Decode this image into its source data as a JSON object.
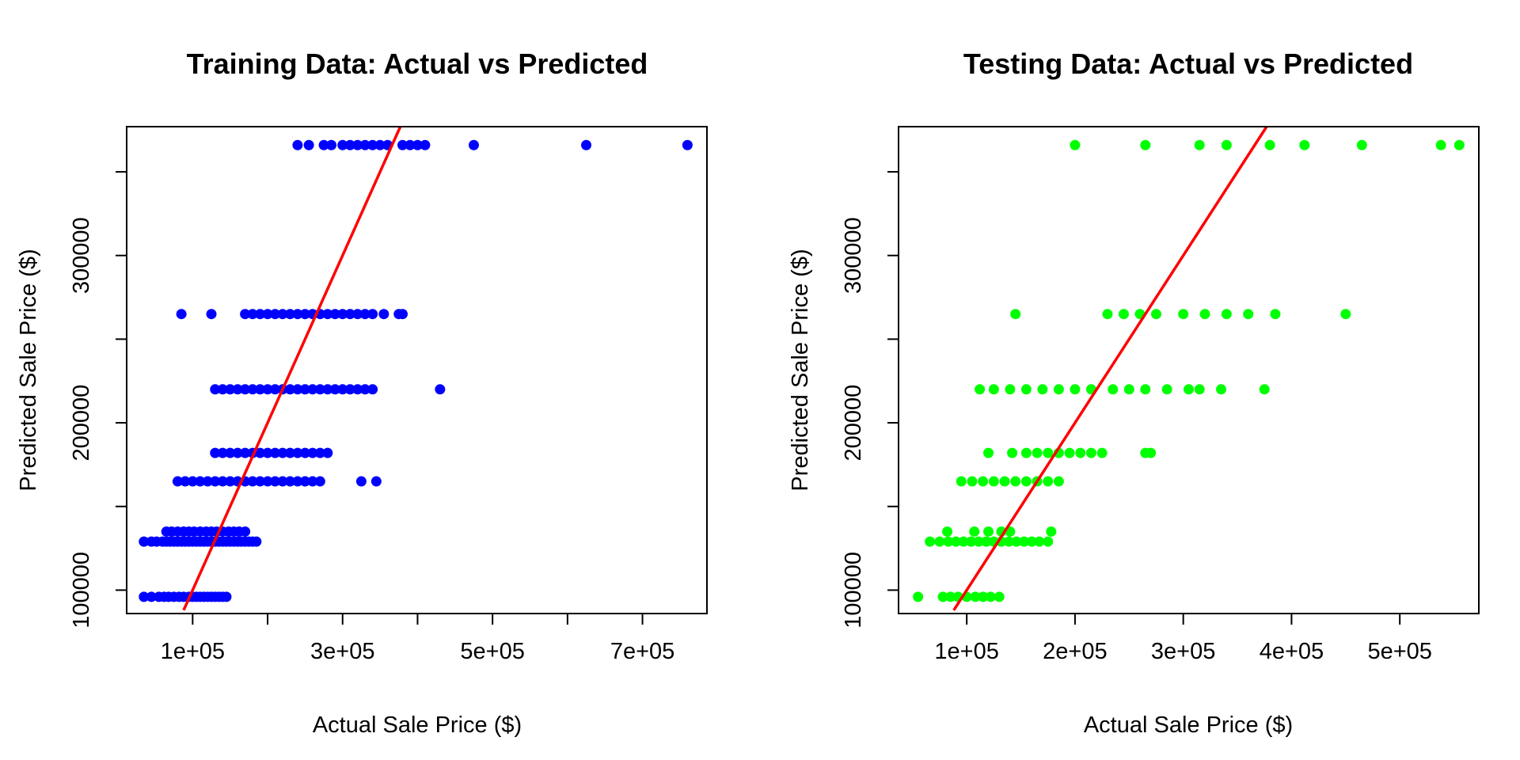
{
  "chart_data": [
    {
      "type": "scatter",
      "title": "Training Data: Actual vs Predicted",
      "xlabel": "Actual Sale Price ($)",
      "ylabel": "Predicted Sale Price ($)",
      "xlim": [
        12000,
        786000
      ],
      "ylim": [
        86000,
        377000
      ],
      "xticks": [
        100000,
        200000,
        300000,
        400000,
        500000,
        600000,
        700000
      ],
      "xtick_labels": [
        "1e+05",
        "",
        "3e+05",
        "",
        "5e+05",
        "",
        "7e+05"
      ],
      "yticks": [
        100000,
        150000,
        200000,
        250000,
        300000,
        350000
      ],
      "ytick_labels": [
        "100000",
        "",
        "200000",
        "",
        "300000",
        ""
      ],
      "point_color": "#0000ff",
      "line_color": "#ff0000",
      "reference_line": {
        "type": "y=x",
        "x": [
          88000,
          377000
        ],
        "y": [
          88000,
          377000
        ]
      },
      "series": [
        {
          "values_x": [
            35000,
            45000,
            55000,
            62000,
            68000,
            75000,
            82000,
            88000,
            95000,
            100000,
            105000,
            110000,
            115000,
            120000,
            125000,
            130000,
            135000,
            140000,
            145000,
            35000,
            45000,
            52000,
            60000,
            65000,
            70000,
            75000,
            80000,
            85000,
            90000,
            95000,
            100000,
            105000,
            110000,
            115000,
            120000,
            125000,
            130000,
            135000,
            140000,
            145000,
            150000,
            155000,
            160000,
            165000,
            170000,
            175000,
            180000,
            185000,
            65000,
            72000,
            80000,
            88000,
            95000,
            102000,
            110000,
            118000,
            125000,
            132000,
            140000,
            148000,
            155000,
            162000,
            170000,
            80000,
            90000,
            100000,
            110000,
            120000,
            130000,
            140000,
            150000,
            160000,
            170000,
            180000,
            190000,
            200000,
            210000,
            220000,
            230000,
            240000,
            250000,
            260000,
            270000,
            325000,
            345000,
            130000,
            140000,
            150000,
            160000,
            170000,
            180000,
            190000,
            200000,
            210000,
            220000,
            230000,
            240000,
            250000,
            260000,
            270000,
            280000,
            130000,
            140000,
            150000,
            160000,
            170000,
            180000,
            190000,
            200000,
            210000,
            220000,
            230000,
            240000,
            250000,
            260000,
            270000,
            280000,
            290000,
            300000,
            310000,
            320000,
            330000,
            340000,
            430000,
            85000,
            125000,
            170000,
            180000,
            190000,
            200000,
            210000,
            220000,
            230000,
            240000,
            250000,
            260000,
            270000,
            280000,
            290000,
            300000,
            310000,
            320000,
            330000,
            340000,
            355000,
            375000,
            380000,
            240000,
            255000,
            275000,
            285000,
            300000,
            310000,
            320000,
            330000,
            340000,
            350000,
            360000,
            380000,
            390000,
            400000,
            410000,
            475000,
            625000,
            760000
          ],
          "values_y": [
            96000,
            96000,
            96000,
            96000,
            96000,
            96000,
            96000,
            96000,
            96000,
            96000,
            96000,
            96000,
            96000,
            96000,
            96000,
            96000,
            96000,
            96000,
            96000,
            129000,
            129000,
            129000,
            129000,
            129000,
            129000,
            129000,
            129000,
            129000,
            129000,
            129000,
            129000,
            129000,
            129000,
            129000,
            129000,
            129000,
            129000,
            129000,
            129000,
            129000,
            129000,
            129000,
            129000,
            129000,
            129000,
            129000,
            129000,
            129000,
            135000,
            135000,
            135000,
            135000,
            135000,
            135000,
            135000,
            135000,
            135000,
            135000,
            135000,
            135000,
            135000,
            135000,
            135000,
            165000,
            165000,
            165000,
            165000,
            165000,
            165000,
            165000,
            165000,
            165000,
            165000,
            165000,
            165000,
            165000,
            165000,
            165000,
            165000,
            165000,
            165000,
            165000,
            165000,
            165000,
            165000,
            182000,
            182000,
            182000,
            182000,
            182000,
            182000,
            182000,
            182000,
            182000,
            182000,
            182000,
            182000,
            182000,
            182000,
            182000,
            182000,
            220000,
            220000,
            220000,
            220000,
            220000,
            220000,
            220000,
            220000,
            220000,
            220000,
            220000,
            220000,
            220000,
            220000,
            220000,
            220000,
            220000,
            220000,
            220000,
            220000,
            220000,
            220000,
            220000,
            265000,
            265000,
            265000,
            265000,
            265000,
            265000,
            265000,
            265000,
            265000,
            265000,
            265000,
            265000,
            265000,
            265000,
            265000,
            265000,
            265000,
            265000,
            265000,
            265000,
            265000,
            265000,
            265000,
            366000,
            366000,
            366000,
            366000,
            366000,
            366000,
            366000,
            366000,
            366000,
            366000,
            366000,
            366000,
            366000,
            366000,
            366000,
            366000,
            366000,
            366000
          ]
        }
      ]
    },
    {
      "type": "scatter",
      "title": "Testing Data: Actual vs Predicted",
      "xlabel": "Actual Sale Price ($)",
      "ylabel": "Predicted Sale Price ($)",
      "xlim": [
        37000,
        573000
      ],
      "ylim": [
        86000,
        377000
      ],
      "xticks": [
        100000,
        200000,
        300000,
        400000,
        500000
      ],
      "xtick_labels": [
        "1e+05",
        "2e+05",
        "3e+05",
        "4e+05",
        "5e+05"
      ],
      "yticks": [
        100000,
        150000,
        200000,
        250000,
        300000,
        350000
      ],
      "ytick_labels": [
        "100000",
        "",
        "200000",
        "",
        "300000",
        ""
      ],
      "point_color": "#00ff00",
      "line_color": "#ff0000",
      "reference_line": {
        "type": "y=x",
        "x": [
          88000,
          377000
        ],
        "y": [
          88000,
          377000
        ]
      },
      "series": [
        {
          "values_x": [
            55000,
            78000,
            85000,
            92000,
            100000,
            108000,
            115000,
            122000,
            130000,
            66000,
            75000,
            83000,
            90000,
            97000,
            104000,
            111000,
            118000,
            125000,
            132000,
            139000,
            146000,
            153000,
            160000,
            167000,
            175000,
            82000,
            107000,
            120000,
            132000,
            140000,
            178000,
            95000,
            105000,
            115000,
            125000,
            135000,
            145000,
            155000,
            165000,
            175000,
            185000,
            120000,
            142000,
            155000,
            165000,
            175000,
            185000,
            195000,
            205000,
            215000,
            225000,
            265000,
            270000,
            112000,
            125000,
            140000,
            155000,
            170000,
            185000,
            200000,
            215000,
            235000,
            250000,
            265000,
            285000,
            305000,
            315000,
            335000,
            375000,
            145000,
            230000,
            245000,
            260000,
            275000,
            300000,
            320000,
            340000,
            360000,
            385000,
            450000,
            200000,
            265000,
            315000,
            340000,
            380000,
            412000,
            465000,
            538000,
            555000
          ],
          "values_y": [
            96000,
            96000,
            96000,
            96000,
            96000,
            96000,
            96000,
            96000,
            96000,
            129000,
            129000,
            129000,
            129000,
            129000,
            129000,
            129000,
            129000,
            129000,
            129000,
            129000,
            129000,
            129000,
            129000,
            129000,
            129000,
            135000,
            135000,
            135000,
            135000,
            135000,
            135000,
            165000,
            165000,
            165000,
            165000,
            165000,
            165000,
            165000,
            165000,
            165000,
            165000,
            182000,
            182000,
            182000,
            182000,
            182000,
            182000,
            182000,
            182000,
            182000,
            182000,
            182000,
            182000,
            220000,
            220000,
            220000,
            220000,
            220000,
            220000,
            220000,
            220000,
            220000,
            220000,
            220000,
            220000,
            220000,
            220000,
            220000,
            220000,
            265000,
            265000,
            265000,
            265000,
            265000,
            265000,
            265000,
            265000,
            265000,
            265000,
            265000,
            366000,
            366000,
            366000,
            366000,
            366000,
            366000,
            366000,
            366000,
            366000
          ]
        }
      ]
    }
  ]
}
